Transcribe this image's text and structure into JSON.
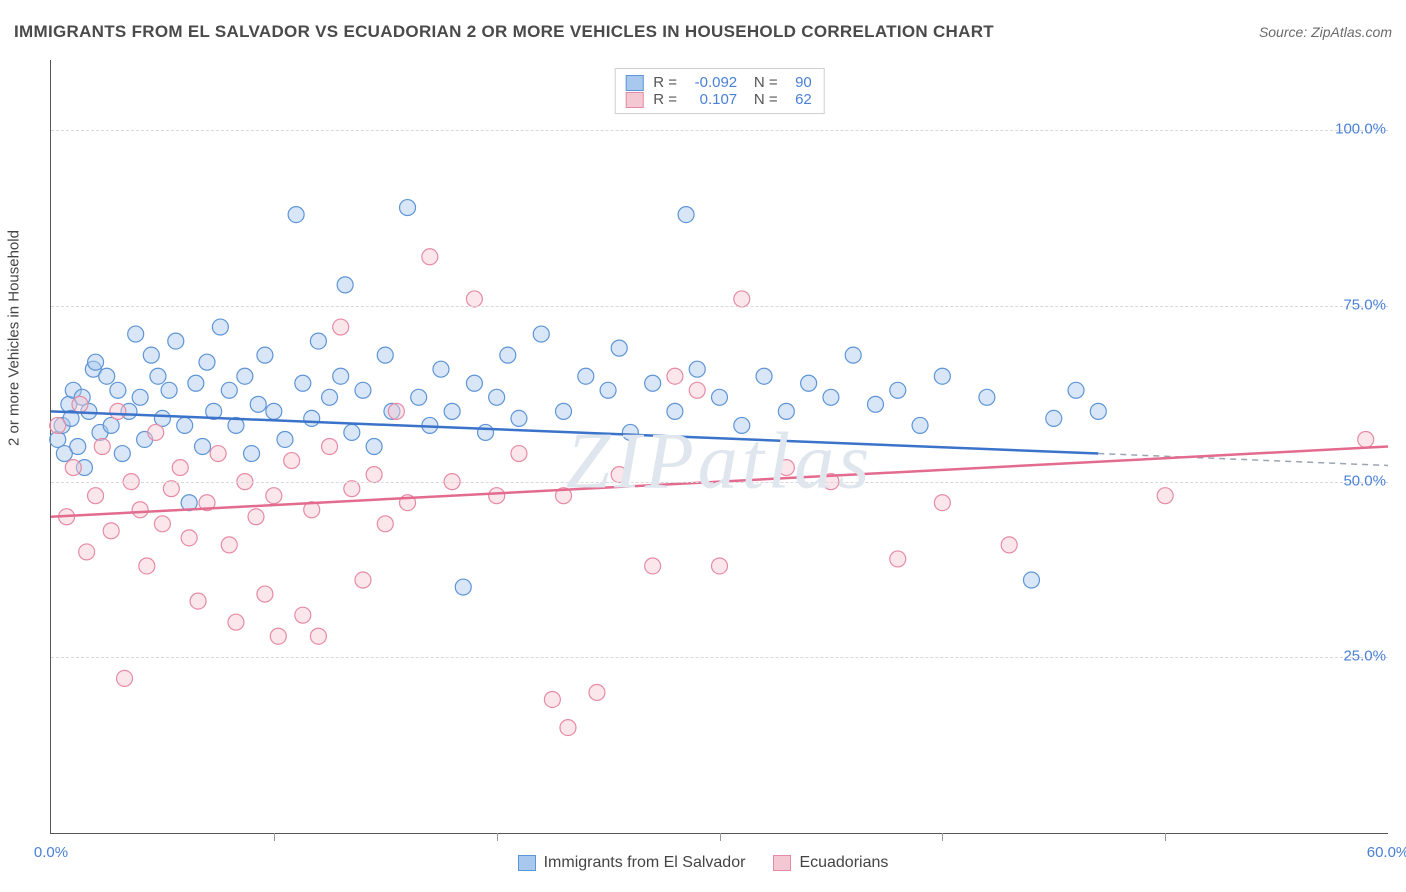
{
  "title": "IMMIGRANTS FROM EL SALVADOR VS ECUADORIAN 2 OR MORE VEHICLES IN HOUSEHOLD CORRELATION CHART",
  "source": "Source: ZipAtlas.com",
  "watermark": "ZIPatlas",
  "ylabel": "2 or more Vehicles in Household",
  "chart": {
    "type": "scatter",
    "xlim": [
      0,
      60
    ],
    "ylim": [
      0,
      110
    ],
    "x_ticks": [
      0,
      60
    ],
    "x_tick_labels": [
      "0.0%",
      "60.0%"
    ],
    "x_minor_tick_step": 10,
    "y_gridlines": [
      25,
      50,
      75,
      100
    ],
    "y_tick_labels": [
      "25.0%",
      "50.0%",
      "75.0%",
      "100.0%"
    ],
    "background_color": "#ffffff",
    "grid_color": "#d8d8d8",
    "axis_color": "#555555",
    "marker_radius": 8,
    "series": [
      {
        "key": "salvador",
        "name": "Immigrants from El Salvador",
        "r_value": "-0.092",
        "n_value": "90",
        "fill": "#a9c8ee",
        "stroke": "#5e95d6",
        "trend": {
          "x1": 0,
          "y1": 60,
          "x2": 47,
          "y2": 54,
          "color": "#3a73c9",
          "width": 2.5,
          "dash_ext": {
            "x2": 60,
            "y2": 52.3,
            "color": "#9aa5b3"
          }
        },
        "points": [
          [
            0.3,
            56
          ],
          [
            0.5,
            58
          ],
          [
            0.6,
            54
          ],
          [
            0.8,
            61
          ],
          [
            0.9,
            59
          ],
          [
            1.0,
            63
          ],
          [
            1.2,
            55
          ],
          [
            1.4,
            62
          ],
          [
            1.5,
            52
          ],
          [
            1.7,
            60
          ],
          [
            1.9,
            66
          ],
          [
            2.0,
            67
          ],
          [
            2.2,
            57
          ],
          [
            2.5,
            65
          ],
          [
            2.7,
            58
          ],
          [
            3.0,
            63
          ],
          [
            3.2,
            54
          ],
          [
            3.5,
            60
          ],
          [
            3.8,
            71
          ],
          [
            4.0,
            62
          ],
          [
            4.2,
            56
          ],
          [
            4.5,
            68
          ],
          [
            4.8,
            65
          ],
          [
            5.0,
            59
          ],
          [
            5.3,
            63
          ],
          [
            5.6,
            70
          ],
          [
            6.0,
            58
          ],
          [
            6.2,
            47
          ],
          [
            6.5,
            64
          ],
          [
            6.8,
            55
          ],
          [
            7.0,
            67
          ],
          [
            7.3,
            60
          ],
          [
            7.6,
            72
          ],
          [
            8.0,
            63
          ],
          [
            8.3,
            58
          ],
          [
            8.7,
            65
          ],
          [
            9.0,
            54
          ],
          [
            9.3,
            61
          ],
          [
            9.6,
            68
          ],
          [
            10.0,
            60
          ],
          [
            10.5,
            56
          ],
          [
            11.0,
            88
          ],
          [
            11.3,
            64
          ],
          [
            11.7,
            59
          ],
          [
            12.0,
            70
          ],
          [
            12.5,
            62
          ],
          [
            13.0,
            65
          ],
          [
            13.2,
            78
          ],
          [
            13.5,
            57
          ],
          [
            14.0,
            63
          ],
          [
            14.5,
            55
          ],
          [
            15.0,
            68
          ],
          [
            15.3,
            60
          ],
          [
            16.0,
            89
          ],
          [
            16.5,
            62
          ],
          [
            17.0,
            58
          ],
          [
            17.5,
            66
          ],
          [
            18.0,
            60
          ],
          [
            18.5,
            35
          ],
          [
            19.0,
            64
          ],
          [
            19.5,
            57
          ],
          [
            20.0,
            62
          ],
          [
            20.5,
            68
          ],
          [
            21.0,
            59
          ],
          [
            22.0,
            71
          ],
          [
            23.0,
            60
          ],
          [
            24.0,
            65
          ],
          [
            25.0,
            63
          ],
          [
            25.5,
            69
          ],
          [
            26.0,
            57
          ],
          [
            27.0,
            64
          ],
          [
            28.0,
            60
          ],
          [
            28.5,
            88
          ],
          [
            29.0,
            66
          ],
          [
            30.0,
            62
          ],
          [
            31.0,
            58
          ],
          [
            32.0,
            65
          ],
          [
            33.0,
            60
          ],
          [
            34.0,
            64
          ],
          [
            35.0,
            62
          ],
          [
            36.0,
            68
          ],
          [
            37.0,
            61
          ],
          [
            38.0,
            63
          ],
          [
            39.0,
            58
          ],
          [
            40.0,
            65
          ],
          [
            42.0,
            62
          ],
          [
            44.0,
            36
          ],
          [
            45.0,
            59
          ],
          [
            46.0,
            63
          ],
          [
            47.0,
            60
          ]
        ]
      },
      {
        "key": "ecuadorian",
        "name": "Ecuadorians",
        "r_value": "0.107",
        "n_value": "62",
        "fill": "#f4c8d3",
        "stroke": "#e68ba5",
        "trend": {
          "x1": 0,
          "y1": 45,
          "x2": 60,
          "y2": 55,
          "color": "#e26b8e",
          "width": 2.5
        },
        "points": [
          [
            0.3,
            58
          ],
          [
            0.7,
            45
          ],
          [
            1.0,
            52
          ],
          [
            1.3,
            61
          ],
          [
            1.6,
            40
          ],
          [
            2.0,
            48
          ],
          [
            2.3,
            55
          ],
          [
            2.7,
            43
          ],
          [
            3.0,
            60
          ],
          [
            3.3,
            22
          ],
          [
            3.6,
            50
          ],
          [
            4.0,
            46
          ],
          [
            4.3,
            38
          ],
          [
            4.7,
            57
          ],
          [
            5.0,
            44
          ],
          [
            5.4,
            49
          ],
          [
            5.8,
            52
          ],
          [
            6.2,
            42
          ],
          [
            6.6,
            33
          ],
          [
            7.0,
            47
          ],
          [
            7.5,
            54
          ],
          [
            8.0,
            41
          ],
          [
            8.3,
            30
          ],
          [
            8.7,
            50
          ],
          [
            9.2,
            45
          ],
          [
            9.6,
            34
          ],
          [
            10.0,
            48
          ],
          [
            10.2,
            28
          ],
          [
            10.8,
            53
          ],
          [
            11.3,
            31
          ],
          [
            11.7,
            46
          ],
          [
            12.0,
            28
          ],
          [
            12.5,
            55
          ],
          [
            13.0,
            72
          ],
          [
            13.5,
            49
          ],
          [
            14.0,
            36
          ],
          [
            14.5,
            51
          ],
          [
            15.0,
            44
          ],
          [
            15.5,
            60
          ],
          [
            16.0,
            47
          ],
          [
            17.0,
            82
          ],
          [
            18.0,
            50
          ],
          [
            19.0,
            76
          ],
          [
            20.0,
            48
          ],
          [
            21.0,
            54
          ],
          [
            22.5,
            19
          ],
          [
            23.0,
            48
          ],
          [
            23.2,
            15
          ],
          [
            24.5,
            20
          ],
          [
            25.5,
            51
          ],
          [
            27.0,
            38
          ],
          [
            28.0,
            65
          ],
          [
            29.0,
            63
          ],
          [
            30.0,
            38
          ],
          [
            31.0,
            76
          ],
          [
            33.0,
            52
          ],
          [
            35.0,
            50
          ],
          [
            38.0,
            39
          ],
          [
            40.0,
            47
          ],
          [
            43.0,
            41
          ],
          [
            50.0,
            48
          ],
          [
            59.0,
            56
          ]
        ]
      }
    ]
  },
  "legend_top": {
    "r_label": "R =",
    "n_label": "N ="
  },
  "colors": {
    "swatch_border_blue": "#5e95d6",
    "swatch_fill_blue": "#a9c8ee",
    "swatch_border_pink": "#e68ba5",
    "swatch_fill_pink": "#f4c8d3",
    "value_text": "#4a80d6"
  }
}
